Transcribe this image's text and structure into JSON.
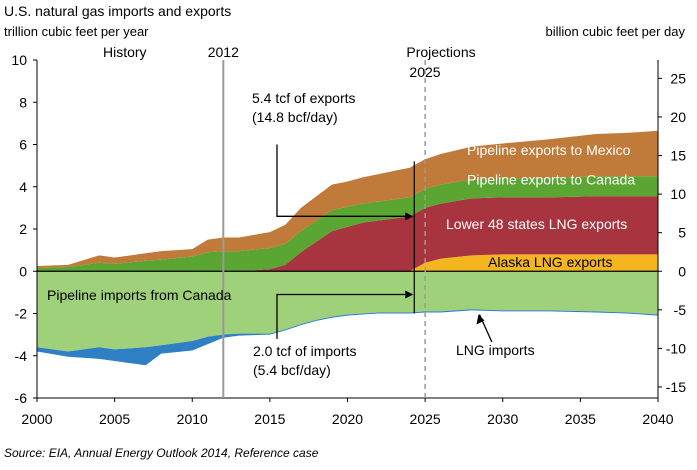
{
  "chart_data": {
    "type": "area",
    "title": "U.S. natural gas imports and exports",
    "ylabel_left": "trillion cubic feet per year",
    "ylabel_right": "billion cubic feet per day",
    "ylim": [
      -6,
      10
    ],
    "y_ticks": [
      -6,
      -4,
      -2,
      0,
      2,
      4,
      6,
      8,
      10
    ],
    "xlim": [
      2000,
      2040
    ],
    "x_ticks": [
      2000,
      2005,
      2010,
      2015,
      2020,
      2025,
      2030,
      2035,
      2040
    ],
    "y2_ticks": [
      -15,
      -10,
      -5,
      0,
      5,
      10,
      15,
      20,
      25
    ],
    "y2_per_y": 2.738,
    "x": [
      2000,
      2002,
      2004,
      2005,
      2007,
      2008,
      2010,
      2011,
      2012,
      2013,
      2015,
      2016,
      2017,
      2018,
      2019,
      2020,
      2021,
      2022,
      2023,
      2024,
      2025,
      2026,
      2028,
      2030,
      2033,
      2036,
      2038,
      2040
    ],
    "series": [
      {
        "name": "Alaska LNG exports",
        "color": "#F5B51E",
        "values": [
          0,
          0,
          0,
          0,
          0,
          0,
          0,
          0,
          0,
          0,
          0,
          0,
          0,
          0,
          0,
          0,
          0,
          0,
          0,
          0,
          0.4,
          0.6,
          0.75,
          0.8,
          0.8,
          0.8,
          0.8,
          0.8
        ]
      },
      {
        "name": "Lower 48 states LNG exports",
        "color": "#A8343F",
        "values": [
          0,
          0,
          0,
          0,
          0,
          0,
          0,
          0,
          0,
          0,
          0.1,
          0.3,
          0.9,
          1.4,
          1.9,
          2.1,
          2.3,
          2.4,
          2.5,
          2.6,
          2.6,
          2.6,
          2.7,
          2.7,
          2.7,
          2.75,
          2.75,
          2.75
        ]
      },
      {
        "name": "Pipeline exports to Canada",
        "color": "#5BA532",
        "values": [
          0.15,
          0.2,
          0.4,
          0.35,
          0.5,
          0.55,
          0.7,
          0.9,
          0.95,
          0.95,
          1.0,
          1.0,
          1.0,
          1.0,
          1.0,
          0.95,
          0.9,
          0.9,
          0.9,
          0.9,
          0.9,
          0.9,
          0.9,
          0.9,
          0.9,
          0.95,
          0.95,
          0.95
        ]
      },
      {
        "name": "Pipeline exports to Mexico",
        "color": "#C07A3A",
        "values": [
          0.1,
          0.1,
          0.35,
          0.3,
          0.35,
          0.4,
          0.35,
          0.6,
          0.65,
          0.65,
          0.75,
          0.9,
          1.1,
          1.15,
          1.2,
          1.2,
          1.25,
          1.3,
          1.35,
          1.4,
          1.4,
          1.45,
          1.55,
          1.65,
          1.85,
          2.0,
          2.05,
          2.15
        ]
      },
      {
        "name": "Pipeline imports from Canada",
        "color": "#9FD07A",
        "values": [
          -3.6,
          -3.8,
          -3.6,
          -3.7,
          -3.6,
          -3.5,
          -3.3,
          -3.1,
          -3.0,
          -2.95,
          -2.95,
          -2.75,
          -2.5,
          -2.3,
          -2.15,
          -2.05,
          -2.0,
          -1.95,
          -1.95,
          -1.95,
          -1.9,
          -1.9,
          -1.8,
          -1.85,
          -1.85,
          -1.9,
          -1.95,
          -2.05
        ]
      },
      {
        "name": "LNG imports",
        "color": "#2E7FC4",
        "values": [
          -0.2,
          -0.25,
          -0.55,
          -0.55,
          -0.85,
          -0.4,
          -0.45,
          -0.35,
          -0.15,
          -0.1,
          -0.05,
          -0.05,
          -0.05,
          -0.05,
          -0.05,
          -0.05,
          -0.05,
          -0.05,
          -0.05,
          -0.05,
          -0.05,
          -0.05,
          -0.05,
          -0.05,
          -0.05,
          -0.05,
          -0.05,
          -0.05
        ]
      }
    ],
    "annotations": {
      "history": "History",
      "year_2012": "2012",
      "projections": "Projections",
      "year_2025": "2025",
      "exports_line1": "5.4 tcf of exports",
      "exports_line2": "(14.8 bcf/day)",
      "imports_line1": "2.0 tcf of imports",
      "imports_line2": "(5.4 bcf/day)",
      "label_mexico": "Pipeline exports to Mexico",
      "label_canada_exports": "Pipeline exports to Canada",
      "label_l48_lng": "Lower 48 states LNG exports",
      "label_alaska_lng": "Alaska LNG exports",
      "label_canada_imports": "Pipeline imports from Canada",
      "label_lng_imports": "LNG imports"
    }
  },
  "source": "Source:  EIA, Annual Energy Outlook 2014, Reference case"
}
